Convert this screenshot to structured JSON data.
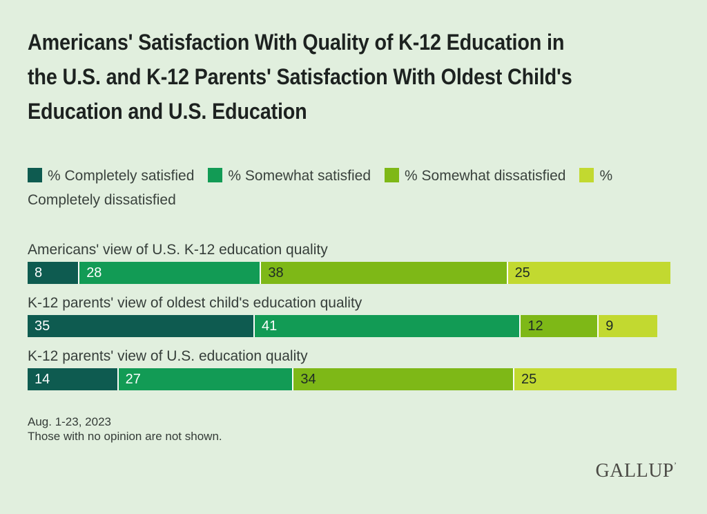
{
  "page": {
    "background": "#e1efde",
    "title": "Americans' Satisfaction With Quality of K-12 Education in the U.S. and K-12 Parents' Satisfaction With Oldest Child's Education and U.S. Education",
    "title_lines": [
      "Americans' Satisfaction With Quality of K-12 Education in",
      "the U.S. and K-12 Parents' Satisfaction With Oldest Child's",
      "Education and U.S. Education"
    ],
    "footnote_lines": [
      "Aug. 1-23, 2023",
      "Those with no opinion are not shown."
    ],
    "logo_text": "GALLUP",
    "logo_trademark": "’"
  },
  "chart_data": {
    "type": "bar",
    "subtype": "horizontal-stacked",
    "title": "Americans' Satisfaction With Quality of K-12 Education in the U.S. and K-12 Parents' Satisfaction With Oldest Child's Education and U.S. Education",
    "unit": "percent",
    "categories": [
      "Americans' view of U.S. K-12 education quality",
      "K-12 parents' view of oldest child's education quality",
      "K-12 parents' view of U.S. education quality"
    ],
    "series": [
      {
        "name": "% Completely satisfied",
        "color": "#0e5b50",
        "label_color": "#ffffff",
        "values": [
          8,
          35,
          14
        ]
      },
      {
        "name": "% Somewhat satisfied",
        "color": "#129b55",
        "label_color": "#ffffff",
        "values": [
          28,
          41,
          27
        ]
      },
      {
        "name": "% Somewhat dissatisfied",
        "color": "#7eb817",
        "label_color": "#1e2a26",
        "values": [
          38,
          12,
          34
        ]
      },
      {
        "name": "% Completely dissatisfied",
        "color": "#c2d930",
        "label_color": "#1e2a26",
        "values": [
          25,
          9,
          25
        ]
      }
    ],
    "axis_range": [
      0,
      100
    ],
    "grid": false,
    "axes_shown": false,
    "data_labels": "inside-start",
    "legend_position": "top"
  }
}
